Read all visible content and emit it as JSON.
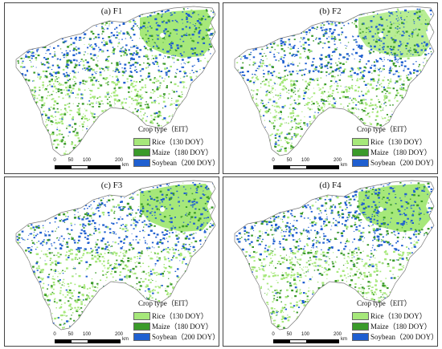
{
  "colors": {
    "rice": "#a6e87a",
    "maize": "#3a9a2a",
    "soybean": "#1f5fd0",
    "background": "#ffffff",
    "boundary": "#7a7a7a"
  },
  "legend": {
    "title": "Crop type（EIT）",
    "items": [
      {
        "label": "Rice（130 DOY）",
        "color": "#a6e87a"
      },
      {
        "label": "Maize（180 DOY）",
        "color": "#3a9a2a"
      },
      {
        "label": "Soybean（200 DOY）",
        "color": "#1f5fd0"
      }
    ]
  },
  "scale": {
    "ticks": [
      "0",
      "50",
      "100",
      "200"
    ],
    "unit": "km"
  },
  "panels": [
    {
      "title": "(a) F1"
    },
    {
      "title": "(b) F2"
    },
    {
      "title": "(c) F3"
    },
    {
      "title": "(d) F4"
    }
  ]
}
